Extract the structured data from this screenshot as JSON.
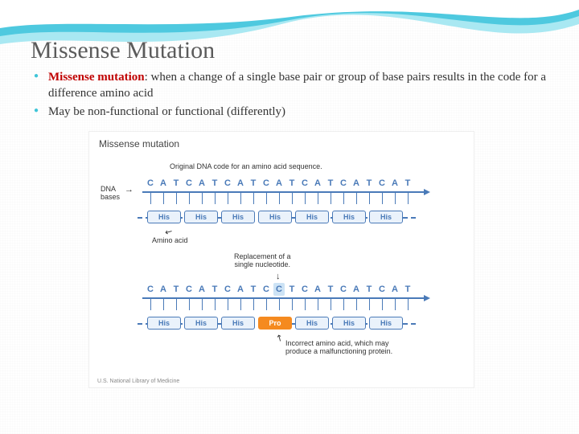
{
  "title": "Missense Mutation",
  "bullets": [
    {
      "term": "Missense mutation",
      "rest": ": when a change of a single base pair or group of base pairs results in the code for a difference amino acid"
    },
    {
      "term": "",
      "rest": "May be non-functional or functional (differently)"
    }
  ],
  "diagram": {
    "title": "Missense mutation",
    "caption_original": "Original DNA code for an amino acid sequence.",
    "caption_replacement": "Replacement of a\nsingle nucleotide.",
    "caption_incorrect": "Incorrect amino acid, which may\nproduce a malfunctioning protein.",
    "label_dna_bases": "DNA\nbases",
    "label_amino_acid": "Amino acid",
    "credit": "U.S. National Library of Medicine",
    "colors": {
      "sequence_blue": "#4a7ab8",
      "amino_bg": "#eaf2fb",
      "mutation_bg": "#f58a1f",
      "highlight_bg": "#cde3f5",
      "wave1": "#4ec9df",
      "wave2": "#a9e8f2"
    },
    "spacing": 16,
    "arrow_width": 350,
    "sequences": {
      "original": {
        "bases": [
          "C",
          "A",
          "T",
          "C",
          "A",
          "T",
          "C",
          "A",
          "T",
          "C",
          "A",
          "T",
          "C",
          "A",
          "T",
          "C",
          "A",
          "T",
          "C",
          "A",
          "T"
        ],
        "aminos": [
          "His",
          "His",
          "His",
          "His",
          "His",
          "His",
          "His"
        ],
        "mutated_index": -1,
        "mutated_amino_index": -1
      },
      "mutated": {
        "bases": [
          "C",
          "A",
          "T",
          "C",
          "A",
          "T",
          "C",
          "A",
          "T",
          "C",
          "C",
          "T",
          "C",
          "A",
          "T",
          "C",
          "A",
          "T",
          "C",
          "A",
          "T"
        ],
        "aminos": [
          "His",
          "His",
          "His",
          "Pro",
          "His",
          "His",
          "His"
        ],
        "mutated_index": 10,
        "mutated_amino_index": 3
      }
    }
  }
}
